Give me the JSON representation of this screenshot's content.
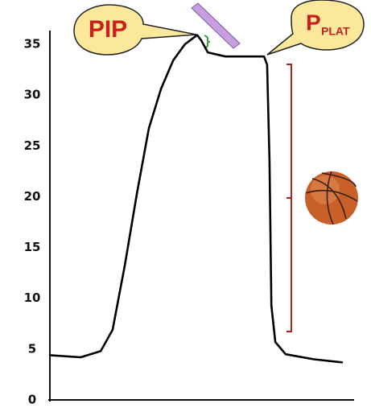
{
  "chart_data": {
    "type": "line",
    "annotations": {
      "pip": "PIP",
      "p": "P",
      "plat": "PLAT"
    },
    "x": [
      0,
      10.1,
      16.7,
      20.6,
      24.6,
      28.6,
      32.5,
      36.5,
      40.5,
      44.4,
      48.4,
      49.7,
      51.9,
      57.7,
      65.6,
      70.4,
      71.4,
      72.2,
      72.8,
      74.1,
      77.5,
      86.8,
      96.0
    ],
    "values": [
      4.4,
      4.2,
      4.8,
      6.9,
      13.2,
      20.3,
      26.7,
      30.6,
      33.4,
      35.0,
      35.9,
      35.4,
      34.2,
      33.8,
      33.8,
      33.8,
      33.0,
      23.5,
      9.3,
      5.7,
      4.5,
      4.0,
      3.7
    ],
    "color": "#000000",
    "xlim": [
      0,
      100
    ],
    "ylim": [
      0,
      35
    ],
    "yticks": [
      0,
      5,
      10,
      15,
      20,
      25,
      30,
      35
    ]
  }
}
